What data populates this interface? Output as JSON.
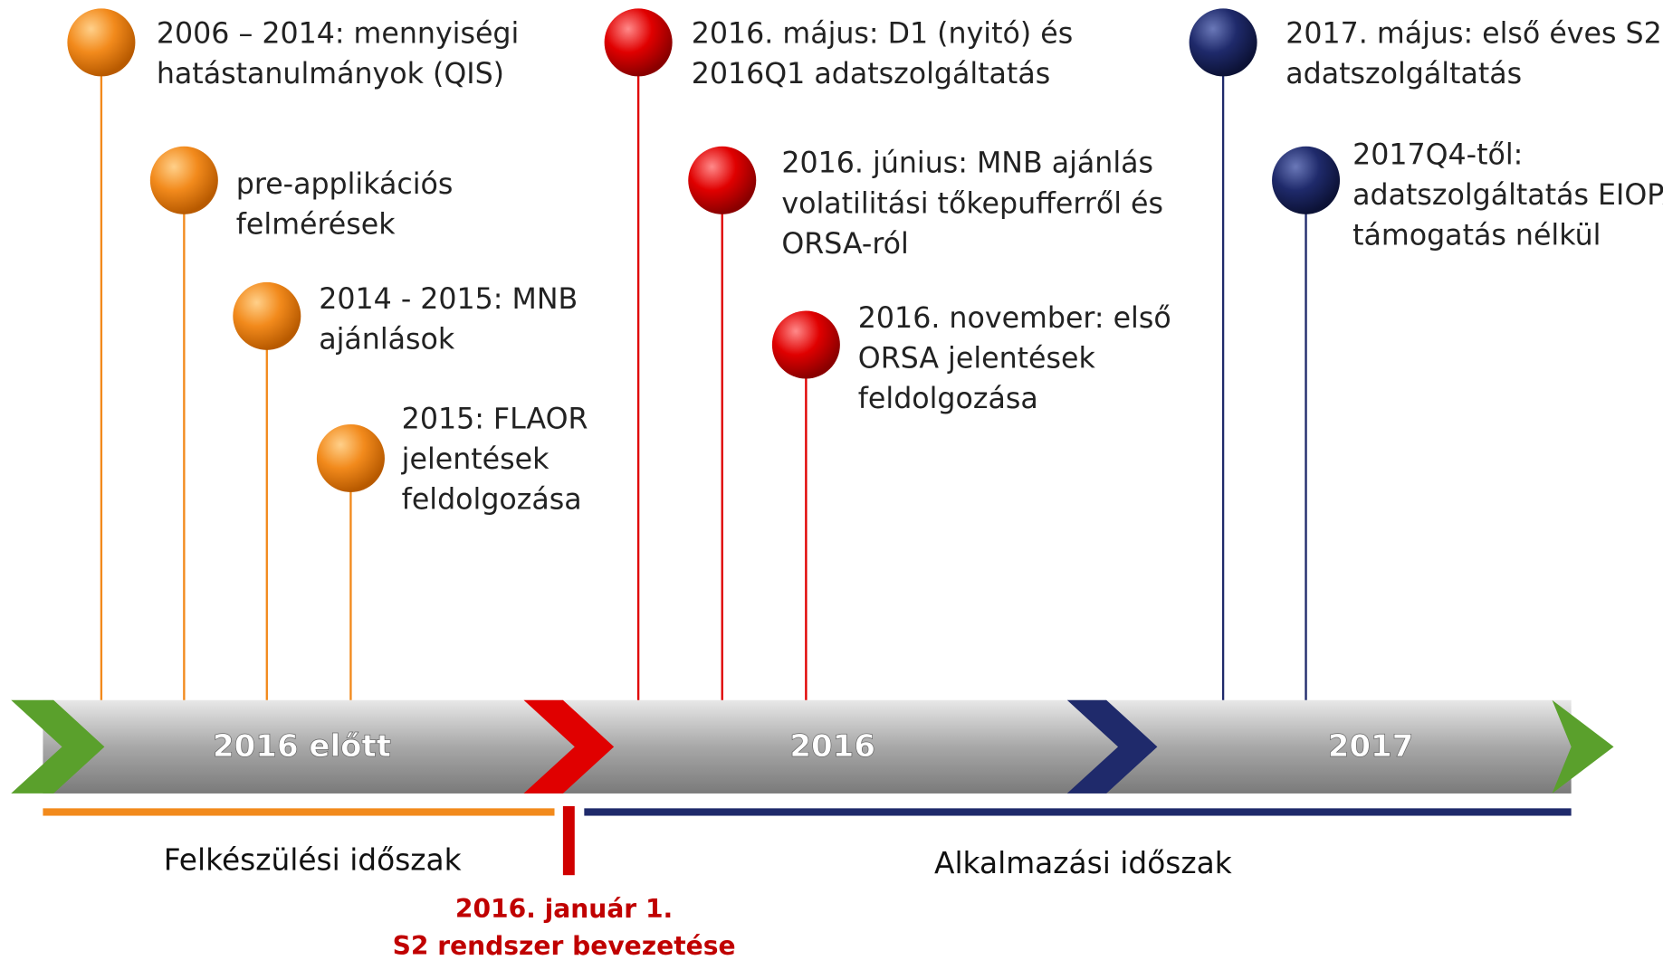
{
  "events": [
    {
      "lines": [
        "2006 – 2014: mennyiségi",
        "hatástanulmányok (QIS)"
      ]
    },
    {
      "lines": [
        "pre-applikációs",
        "felmérések"
      ]
    },
    {
      "lines": [
        "2014  - 2015: MNB",
        "ajánlások"
      ]
    },
    {
      "lines": [
        "2015: FLAOR",
        "jelentések",
        "feldolgozása"
      ]
    },
    {
      "lines": [
        "2016. május: D1 (nyitó) és",
        "2016Q1 adatszolgáltatás"
      ]
    },
    {
      "lines": [
        "2016. június: MNB ajánlás",
        "volatilitási tőkepufferről és",
        "ORSA-ról"
      ]
    },
    {
      "lines": [
        "2016. november: első",
        "ORSA jelentések",
        "feldolgozása"
      ]
    },
    {
      "lines": [
        "2017. május: első éves S2",
        "adatszolgáltatás"
      ]
    },
    {
      "lines": [
        "2017Q4-től:",
        "adatszolgáltatás EIOPA",
        "támogatás nélkül"
      ]
    }
  ],
  "periods": [
    "2016 előtt",
    "2016",
    "2017"
  ],
  "phases": [
    "Felkészülési időszak",
    "Alkalmazási időszak"
  ],
  "milestone": {
    "lines": [
      "2016. január 1.",
      "S2 rendszer bevezetése"
    ]
  }
}
